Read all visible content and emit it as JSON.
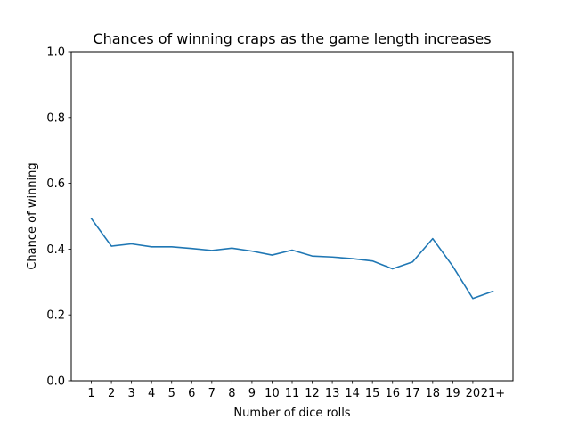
{
  "chart_data": {
    "type": "line",
    "title": "Chances of winning craps as the game length increases",
    "xlabel": "Number of dice rolls",
    "ylabel": "Chance of winning",
    "categories": [
      "1",
      "2",
      "3",
      "4",
      "5",
      "6",
      "7",
      "8",
      "9",
      "10",
      "11",
      "12",
      "13",
      "14",
      "15",
      "16",
      "17",
      "18",
      "19",
      "20",
      "21+"
    ],
    "series": [
      {
        "values": [
          0.493,
          0.409,
          0.416,
          0.407,
          0.407,
          0.402,
          0.396,
          0.403,
          0.394,
          0.382,
          0.397,
          0.379,
          0.376,
          0.371,
          0.364,
          0.34,
          0.361,
          0.432,
          0.348,
          0.25,
          0.272
        ]
      }
    ],
    "ylim": [
      0.0,
      1.0
    ],
    "yticks": [
      "0.0",
      "0.2",
      "0.4",
      "0.6",
      "0.8",
      "1.0"
    ],
    "grid": false,
    "line_color": "#1f77b4"
  }
}
